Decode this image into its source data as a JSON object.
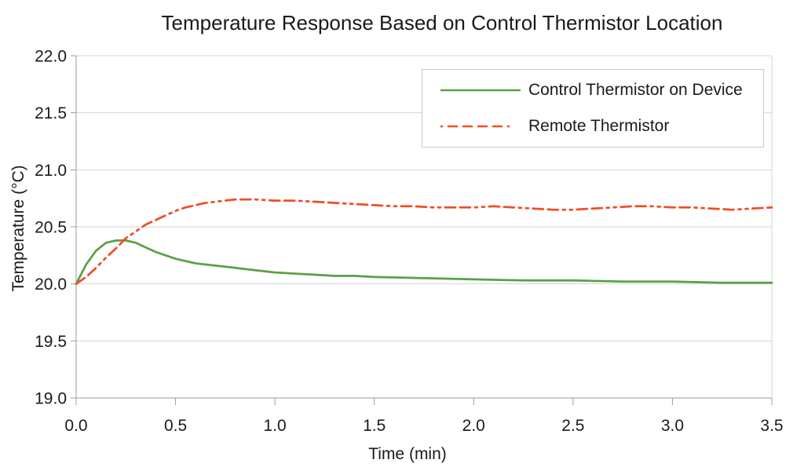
{
  "chart_data": {
    "type": "line",
    "title": "Temperature Response Based on Control Thermistor Location",
    "xlabel": "Time (min)",
    "ylabel": "Temperature (°C)",
    "xlim": [
      0.0,
      3.5
    ],
    "ylim": [
      19.0,
      22.0
    ],
    "x_tick_step": 0.5,
    "y_tick_step": 0.5,
    "x_tick_labels": [
      "0.0",
      "0.5",
      "1.0",
      "1.5",
      "2.0",
      "2.5",
      "3.0",
      "3.5"
    ],
    "y_tick_labels": [
      "19.0",
      "19.5",
      "20.0",
      "20.5",
      "21.0",
      "21.5",
      "22.0"
    ],
    "grid": "horizontal-only",
    "legend_position": "top-right",
    "colors": {
      "grid": "#d6d6d6",
      "axis": "#9c9c9c",
      "text": "#1a1a1a",
      "legend_border": "#c9c9c9",
      "background": "#ffffff"
    },
    "series": [
      {
        "name": "Control Thermistor on Device",
        "color": "#5ca044",
        "style": "solid",
        "x": [
          0.0,
          0.05,
          0.1,
          0.15,
          0.2,
          0.25,
          0.3,
          0.35,
          0.4,
          0.45,
          0.5,
          0.6,
          0.7,
          0.8,
          0.9,
          1.0,
          1.1,
          1.2,
          1.3,
          1.4,
          1.5,
          1.75,
          2.0,
          2.25,
          2.5,
          2.75,
          3.0,
          3.25,
          3.5
        ],
        "y": [
          20.0,
          20.17,
          20.29,
          20.36,
          20.38,
          20.38,
          20.36,
          20.32,
          20.28,
          20.25,
          20.22,
          20.18,
          20.16,
          20.14,
          20.12,
          20.1,
          20.09,
          20.08,
          20.07,
          20.07,
          20.06,
          20.05,
          20.04,
          20.03,
          20.03,
          20.02,
          20.02,
          20.01,
          20.01
        ]
      },
      {
        "name": "Remote Thermistor",
        "color": "#f04e27",
        "style": "dash-dash-dot-dot",
        "x": [
          0.0,
          0.05,
          0.1,
          0.15,
          0.2,
          0.25,
          0.3,
          0.35,
          0.4,
          0.45,
          0.5,
          0.55,
          0.6,
          0.65,
          0.7,
          0.75,
          0.8,
          0.9,
          1.0,
          1.1,
          1.2,
          1.3,
          1.4,
          1.5,
          1.6,
          1.7,
          1.8,
          1.9,
          2.0,
          2.1,
          2.2,
          2.3,
          2.4,
          2.5,
          2.6,
          2.7,
          2.8,
          2.9,
          3.0,
          3.1,
          3.2,
          3.3,
          3.4,
          3.5
        ],
        "y": [
          20.0,
          20.06,
          20.14,
          20.23,
          20.31,
          20.4,
          20.46,
          20.52,
          20.56,
          20.6,
          20.64,
          20.67,
          20.69,
          20.71,
          20.72,
          20.73,
          20.74,
          20.74,
          20.73,
          20.73,
          20.72,
          20.71,
          20.7,
          20.69,
          20.68,
          20.68,
          20.67,
          20.67,
          20.67,
          20.68,
          20.67,
          20.66,
          20.65,
          20.65,
          20.66,
          20.67,
          20.68,
          20.68,
          20.67,
          20.67,
          20.66,
          20.65,
          20.66,
          20.67
        ]
      }
    ]
  }
}
